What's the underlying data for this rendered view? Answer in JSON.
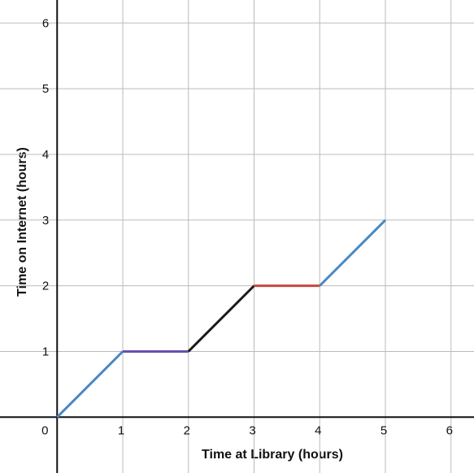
{
  "chart_data": {
    "type": "line",
    "x_label": "Time at Library (hours)",
    "y_label": "Time on Internet (hours)",
    "series": [
      {
        "color": "#4a86c4",
        "x": [
          0,
          1
        ],
        "values": [
          0,
          1
        ]
      },
      {
        "color": "#6a4fae",
        "x": [
          1,
          2
        ],
        "values": [
          1,
          1
        ]
      },
      {
        "color": "#1a1a1a",
        "x": [
          2,
          3
        ],
        "values": [
          1,
          2
        ]
      },
      {
        "color": "#c8473e",
        "x": [
          3,
          4
        ],
        "values": [
          2,
          2
        ]
      },
      {
        "color": "#4a86c4",
        "x": [
          4,
          5
        ],
        "values": [
          2,
          3
        ]
      }
    ],
    "xlim": [
      -0.87,
      6.35
    ],
    "ylim": [
      -0.85,
      6.35
    ],
    "xticks": [
      0,
      1,
      2,
      3,
      4,
      5,
      6
    ],
    "yticks": [
      1,
      2,
      3,
      4,
      5,
      6
    ],
    "grid": true
  }
}
